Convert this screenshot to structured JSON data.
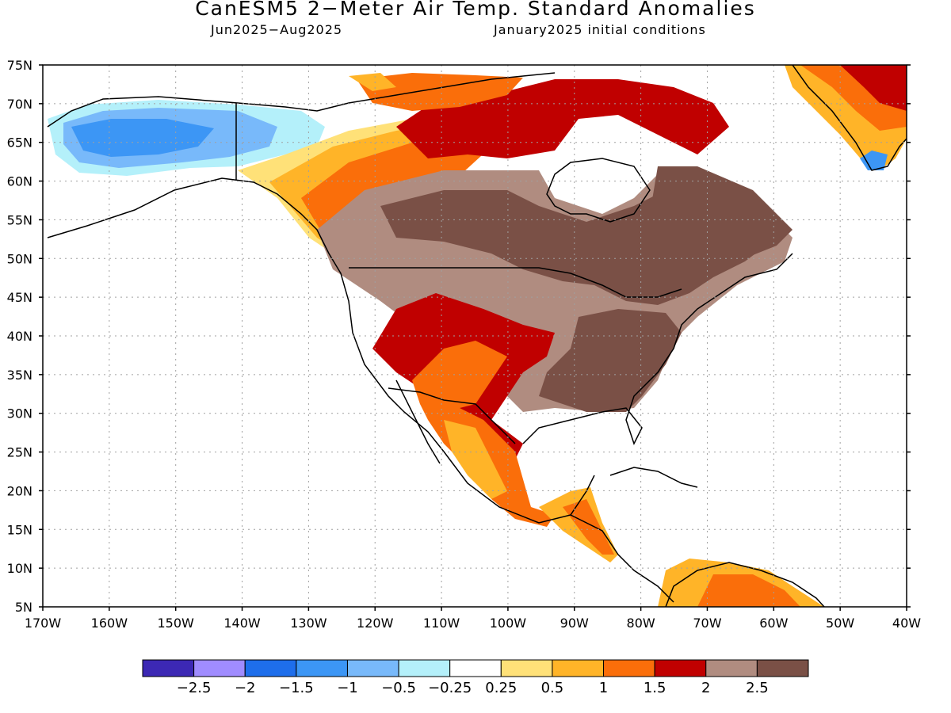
{
  "title": "CanESM5 2−Meter Air Temp. Standard Anomalies",
  "subtitle_period": "Jun2025−Aug2025",
  "subtitle_init": "January2025 initial conditions",
  "lat_labels": [
    "75N",
    "70N",
    "65N",
    "60N",
    "55N",
    "50N",
    "45N",
    "40N",
    "35N",
    "30N",
    "25N",
    "20N",
    "15N",
    "10N",
    "5N"
  ],
  "lon_labels": [
    "170W",
    "160W",
    "150W",
    "140W",
    "130W",
    "120W",
    "110W",
    "100W",
    "90W",
    "80W",
    "70W",
    "60W",
    "50W",
    "40W"
  ],
  "colorbar": {
    "colors": [
      "#3c28b4",
      "#a08cff",
      "#1e6eeb",
      "#3c96f5",
      "#78b9fa",
      "#b4f0fa",
      "#ffffff",
      "#ffe178",
      "#ffb428",
      "#fa6e0a",
      "#c00000",
      "#b08c80",
      "#7a5046"
    ],
    "labels": [
      "−2.5",
      "−2",
      "−1.5",
      "−1",
      "−0.5",
      "−0.25",
      "0.25",
      "0.5",
      "1",
      "1.5",
      "2",
      "2.5"
    ]
  }
}
